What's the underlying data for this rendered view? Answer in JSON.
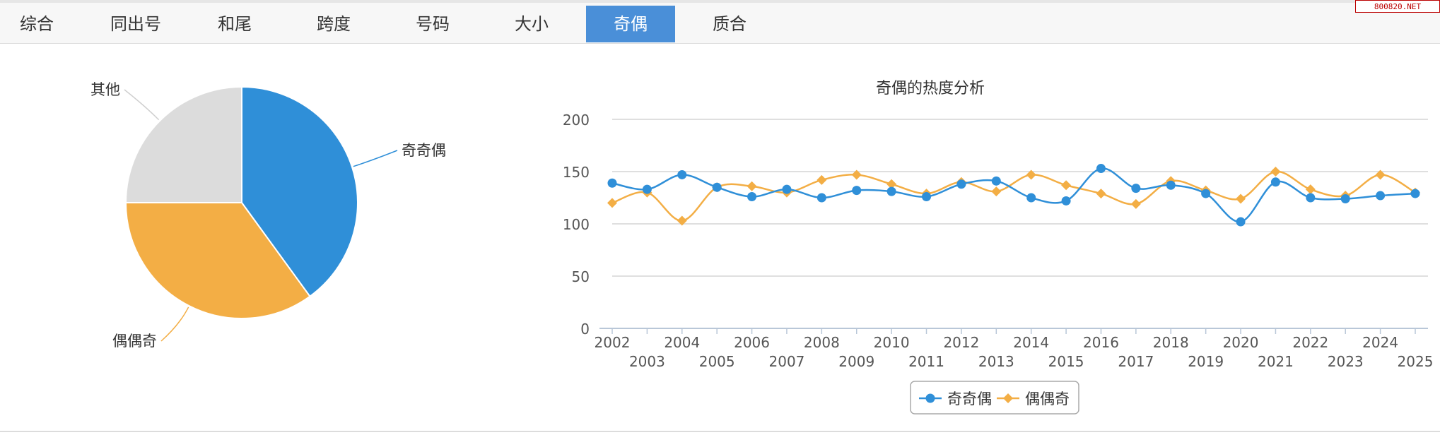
{
  "tabs": [
    {
      "label": "综合",
      "active": false
    },
    {
      "label": "同出号",
      "active": false
    },
    {
      "label": "和尾",
      "active": false
    },
    {
      "label": "跨度",
      "active": false
    },
    {
      "label": "号码",
      "active": false
    },
    {
      "label": "大小",
      "active": false
    },
    {
      "label": "奇偶",
      "active": true
    },
    {
      "label": "质合",
      "active": false
    }
  ],
  "site_badge": "800820.NET",
  "colors": {
    "blue": "#2f8fd8",
    "orange": "#f3ae45",
    "gray": "#dcdcdc",
    "active_tab": "#4a8fd8"
  },
  "chart_data": [
    {
      "type": "pie",
      "slices": [
        {
          "label": "奇奇偶",
          "value": 40,
          "color": "#2f8fd8"
        },
        {
          "label": "偶偶奇",
          "value": 35,
          "color": "#f3ae45"
        },
        {
          "label": "其他",
          "value": 25,
          "color": "#dcdcdc"
        }
      ]
    },
    {
      "type": "line",
      "title": "奇偶的热度分析",
      "x": [
        "2002",
        "2003",
        "2004",
        "2005",
        "2006",
        "2007",
        "2008",
        "2009",
        "2010",
        "2011",
        "2012",
        "2013",
        "2014",
        "2015",
        "2016",
        "2017",
        "2018",
        "2019",
        "2020",
        "2021",
        "2022",
        "2023",
        "2024",
        "2025"
      ],
      "ylim": [
        0,
        200
      ],
      "yticks": [
        0,
        50,
        100,
        150,
        200
      ],
      "grid": true,
      "legend": "bottom-center",
      "series": [
        {
          "name": "奇奇偶",
          "color": "#2f8fd8",
          "marker": "circle",
          "values": [
            139,
            133,
            147,
            135,
            126,
            133,
            125,
            132,
            131,
            126,
            138,
            141,
            125,
            122,
            153,
            134,
            137,
            129,
            102,
            140,
            125,
            124,
            127,
            129
          ]
        },
        {
          "name": "偶偶奇",
          "color": "#f3ae45",
          "marker": "diamond",
          "values": [
            120,
            130,
            103,
            135,
            136,
            130,
            142,
            147,
            138,
            129,
            140,
            131,
            147,
            137,
            129,
            119,
            141,
            132,
            124,
            150,
            133,
            127,
            147,
            130
          ]
        }
      ]
    }
  ]
}
